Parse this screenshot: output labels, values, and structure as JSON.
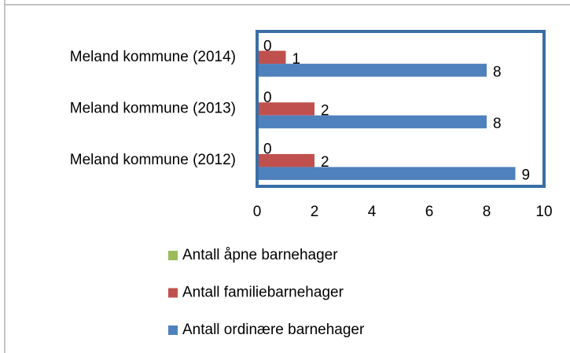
{
  "chart_data": {
    "type": "bar",
    "orientation": "horizontal",
    "categories": [
      "Meland kommune (2012)",
      "Meland kommune (2013)",
      "Meland kommune (2014)"
    ],
    "series": [
      {
        "name": "Antall åpne barnehager",
        "color": "#9bbb59",
        "values": [
          0,
          0,
          0
        ]
      },
      {
        "name": "Antall familiebarnehager",
        "color": "#c0504d",
        "values": [
          2,
          2,
          1
        ]
      },
      {
        "name": "Antall ordinære barnehager",
        "color": "#4f81bd",
        "values": [
          9,
          8,
          8
        ]
      }
    ],
    "xlim": [
      0,
      10
    ],
    "xticks": [
      0,
      2,
      4,
      6,
      8,
      10
    ],
    "grid": false,
    "legend": "bottom"
  }
}
